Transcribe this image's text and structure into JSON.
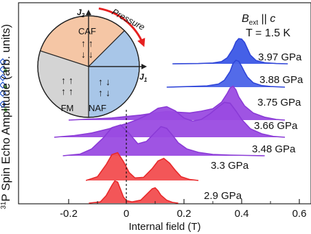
{
  "chart_data": {
    "type": "line",
    "title": "",
    "xlabel": "Internal field (T)",
    "ylabel_sup": "31",
    "ylabel": "P Spin Echo Amplitude (arb. units)",
    "xlim": [
      -0.35,
      0.62
    ],
    "x_ticks": [
      -0.2,
      0,
      0.2,
      0.4,
      0.6
    ],
    "x_tick_labels": [
      "-0.2",
      "0",
      "0.2",
      "0.4",
      "0.6"
    ],
    "annotation": {
      "b_main": "B",
      "b_sub": "ext",
      "b_rel": " || ",
      "b_axis": "c",
      "t_line": "T = 1.5 K"
    },
    "series": [
      {
        "name": "3.97 GPa",
        "color": "#2f45d8",
        "fill": "#3b57e6",
        "x": [
          0.16,
          0.25,
          0.3,
          0.33,
          0.35,
          0.37,
          0.38,
          0.39,
          0.4,
          0.41,
          0.42,
          0.43,
          0.45,
          0.48,
          0.52,
          0.56
        ],
        "y": [
          0.0,
          0.01,
          0.03,
          0.08,
          0.22,
          0.55,
          0.8,
          0.92,
          0.9,
          0.78,
          0.55,
          0.32,
          0.12,
          0.04,
          0.01,
          0.0
        ]
      },
      {
        "name": "3.88 GPa",
        "color": "#2f45d8",
        "fill": "#4a63e8",
        "x": [
          0.14,
          0.22,
          0.28,
          0.32,
          0.34,
          0.36,
          0.37,
          0.38,
          0.39,
          0.4,
          0.41,
          0.42,
          0.44,
          0.47,
          0.5,
          0.55
        ],
        "y": [
          0.0,
          0.02,
          0.04,
          0.1,
          0.22,
          0.5,
          0.75,
          0.85,
          0.82,
          0.66,
          0.48,
          0.32,
          0.14,
          0.05,
          0.02,
          0.0
        ]
      },
      {
        "name": "3.75 GPa",
        "color": "#8a3ad6",
        "fill": "#9a4be2",
        "x": [
          -0.2,
          -0.12,
          -0.05,
          0.0,
          0.05,
          0.1,
          0.14,
          0.18,
          0.22,
          0.26,
          0.3,
          0.33,
          0.35,
          0.36,
          0.37,
          0.38,
          0.39,
          0.41,
          0.44,
          0.48,
          0.52,
          0.55
        ],
        "y": [
          0.0,
          0.03,
          0.06,
          0.1,
          0.14,
          0.2,
          0.24,
          0.22,
          0.2,
          0.25,
          0.32,
          0.5,
          0.75,
          0.9,
          0.95,
          0.85,
          0.65,
          0.4,
          0.2,
          0.08,
          0.02,
          0.0
        ]
      },
      {
        "name": "3.66 GPa",
        "color": "#8a3ad6",
        "fill": "#9a4be2",
        "x": [
          -0.25,
          -0.18,
          -0.12,
          -0.06,
          0.0,
          0.04,
          0.08,
          0.11,
          0.14,
          0.17,
          0.2,
          0.23,
          0.26,
          0.29,
          0.32,
          0.34,
          0.36,
          0.38,
          0.4,
          0.43,
          0.47,
          0.51,
          0.55
        ],
        "y": [
          0.0,
          0.04,
          0.1,
          0.2,
          0.32,
          0.42,
          0.55,
          0.68,
          0.72,
          0.62,
          0.45,
          0.38,
          0.42,
          0.55,
          0.72,
          0.82,
          0.8,
          0.62,
          0.42,
          0.2,
          0.08,
          0.02,
          0.0
        ]
      },
      {
        "name": "3.48 GPa",
        "color": "#8a3ad6",
        "fill": "#9a4be2",
        "x": [
          -0.22,
          -0.16,
          -0.12,
          -0.08,
          -0.05,
          -0.02,
          0.01,
          0.04,
          0.07,
          0.1,
          0.12,
          0.14,
          0.16,
          0.18,
          0.21,
          0.25,
          0.3,
          0.36,
          0.42,
          0.48
        ],
        "y": [
          0.0,
          0.05,
          0.2,
          0.52,
          0.82,
          0.9,
          0.65,
          0.35,
          0.42,
          0.68,
          0.85,
          0.8,
          0.6,
          0.38,
          0.2,
          0.1,
          0.04,
          0.02,
          0.01,
          0.0
        ]
      },
      {
        "name": "3.3 GPa",
        "color": "#e8282a",
        "fill": "#f24d4f",
        "x": [
          -0.14,
          -0.1,
          -0.07,
          -0.05,
          -0.03,
          -0.01,
          0.01,
          0.03,
          0.06,
          0.09,
          0.11,
          0.13,
          0.15,
          0.17,
          0.19,
          0.22,
          0.25
        ],
        "y": [
          0.0,
          0.12,
          0.5,
          0.82,
          0.88,
          0.6,
          0.25,
          0.08,
          0.1,
          0.38,
          0.62,
          0.7,
          0.55,
          0.32,
          0.12,
          0.03,
          0.0
        ]
      },
      {
        "name": "2.9 GPa",
        "color": "#e8282a",
        "fill": "#f24d4f",
        "x": [
          -0.13,
          -0.09,
          -0.07,
          -0.05,
          -0.04,
          -0.03,
          -0.02,
          -0.01,
          0.0,
          0.02,
          0.05,
          0.07,
          0.09,
          0.1,
          0.11,
          0.12,
          0.14,
          0.16,
          0.18
        ],
        "y": [
          0.0,
          0.05,
          0.3,
          0.72,
          0.9,
          0.85,
          0.55,
          0.25,
          0.1,
          0.05,
          0.12,
          0.35,
          0.58,
          0.62,
          0.5,
          0.32,
          0.12,
          0.03,
          0.0
        ]
      }
    ],
    "inset": {
      "sectors": [
        {
          "name": "CAF",
          "arrows": "↑↑\n↓↓",
          "color": "#f5c6a5"
        },
        {
          "name": "NAF",
          "arrows": "↑↓\n↑↓",
          "color": "#a8c6e8"
        },
        {
          "name": "FM",
          "arrows": "↑↑\n↑↑",
          "color": "#d4d4d4"
        }
      ],
      "axis_j2_main": "J",
      "axis_j2_sub": "2",
      "axis_j1_main": "J",
      "axis_j1_sub": "1",
      "pressure_label": "Pressure",
      "pressure_color": "#e62020"
    },
    "left_marker_color": "#2255cc"
  }
}
